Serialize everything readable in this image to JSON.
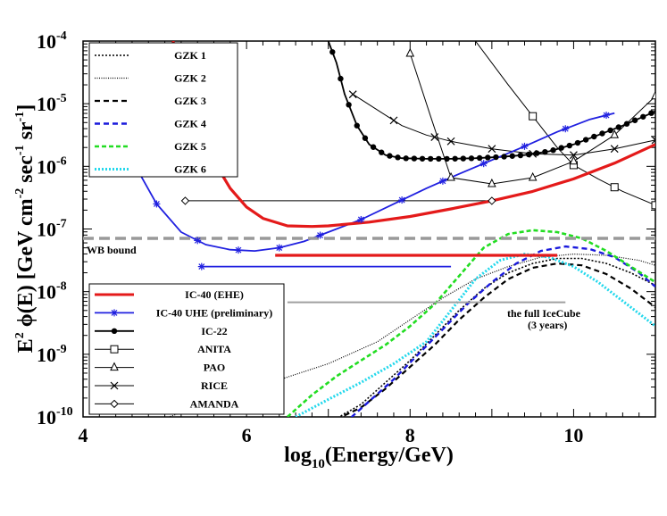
{
  "chart_data": {
    "type": "line",
    "title": "",
    "xlabel_base": "log",
    "xlabel_sub": "10",
    "xlabel_rest": "(Energy/GeV)",
    "ylabel_prefix": "E",
    "ylabel_exp2": "2",
    "ylabel_mid": " ϕ(E) [GeV cm",
    "ylabel_exp_cm": "-2",
    "ylabel_sec": " sec",
    "ylabel_exp_sec": "-1",
    "ylabel_sr": " sr",
    "ylabel_exp_sr": "-1",
    "ylabel_end": "]",
    "xlim": [
      4,
      11
    ],
    "ylim_log10": [
      -10,
      -4
    ],
    "x_ticks": [
      {
        "v": 4,
        "label": "4"
      },
      {
        "v": 6,
        "label": "6"
      },
      {
        "v": 8,
        "label": "8"
      },
      {
        "v": 10,
        "label": "10"
      }
    ],
    "y_ticks": [
      {
        "v": -4,
        "base": "10",
        "exp": "-4"
      },
      {
        "v": -5,
        "base": "10",
        "exp": "-5"
      },
      {
        "v": -6,
        "base": "10",
        "exp": "-6"
      },
      {
        "v": -7,
        "base": "10",
        "exp": "-7"
      },
      {
        "v": -8,
        "base": "10",
        "exp": "-8"
      },
      {
        "v": -9,
        "base": "10",
        "exp": "-9"
      },
      {
        "v": -10,
        "base": "10",
        "exp": "-10"
      }
    ],
    "legend_top": [
      {
        "key": "gzk1",
        "label": "GZK 1"
      },
      {
        "key": "gzk2",
        "label": "GZK 2"
      },
      {
        "key": "gzk3",
        "label": "GZK 3"
      },
      {
        "key": "gzk4",
        "label": "GZK 4"
      },
      {
        "key": "gzk5",
        "label": "GZK 5"
      },
      {
        "key": "gzk6",
        "label": "GZK 6"
      }
    ],
    "legend_bottom": [
      {
        "key": "ic40ehe",
        "label": "IC-40 (EHE)"
      },
      {
        "key": "ic40uhe",
        "label": "IC-40 UHE (preliminary)"
      },
      {
        "key": "ic22",
        "label": "IC-22"
      },
      {
        "key": "anita",
        "label": "ANITA"
      },
      {
        "key": "pao",
        "label": "PAO"
      },
      {
        "key": "rice",
        "label": "RICE"
      },
      {
        "key": "amanda",
        "label": "AMANDA"
      }
    ],
    "styles": {
      "gzk1": {
        "color": "#000000",
        "width": 1.6,
        "dash": "2,2",
        "marker": "none"
      },
      "gzk2": {
        "color": "#000000",
        "width": 1.2,
        "dash": "1,1.5",
        "marker": "none"
      },
      "gzk3": {
        "color": "#000000",
        "width": 2.2,
        "dash": "6,4",
        "marker": "none"
      },
      "gzk4": {
        "color": "#1a1adc",
        "width": 2.4,
        "dash": "6,4",
        "marker": "none"
      },
      "gzk5": {
        "color": "#22dd22",
        "width": 2.6,
        "dash": "5,3",
        "marker": "none"
      },
      "gzk6": {
        "color": "#22d8ec",
        "width": 3.0,
        "dash": "2,2",
        "marker": "none"
      },
      "ic40ehe": {
        "color": "#e41a1a",
        "width": 3.2,
        "dash": "",
        "marker": "none"
      },
      "ic40uhe": {
        "color": "#2020e0",
        "width": 1.8,
        "dash": "",
        "marker": "star"
      },
      "ic22": {
        "color": "#000000",
        "width": 1.8,
        "dash": "",
        "marker": "dot"
      },
      "anita": {
        "color": "#000000",
        "width": 1.0,
        "dash": "",
        "marker": "square"
      },
      "pao": {
        "color": "#000000",
        "width": 1.0,
        "dash": "",
        "marker": "triangle"
      },
      "rice": {
        "color": "#000000",
        "width": 1.0,
        "dash": "",
        "marker": "cross"
      },
      "amanda": {
        "color": "#000000",
        "width": 1.0,
        "dash": "",
        "marker": "diamond"
      }
    },
    "series": [
      {
        "key": "gzk2",
        "name": "GZK 2",
        "x": [
          4.6,
          5.5,
          6.3,
          7.0,
          7.6,
          8.0,
          8.4,
          8.8,
          9.2,
          9.6,
          10.0,
          10.4,
          10.8,
          11.0
        ],
        "y": [
          -10.2,
          -9.8,
          -9.45,
          -9.15,
          -8.8,
          -8.45,
          -8.1,
          -7.8,
          -7.6,
          -7.45,
          -7.4,
          -7.42,
          -7.5,
          -7.58
        ]
      },
      {
        "key": "gzk1",
        "name": "GZK 1",
        "x": [
          7.0,
          7.4,
          7.7,
          8.0,
          8.3,
          8.6,
          8.9,
          9.2,
          9.5,
          9.8,
          10.1,
          10.4,
          10.7,
          11.0
        ],
        "y": [
          -10.1,
          -9.8,
          -9.45,
          -9.1,
          -8.7,
          -8.3,
          -7.95,
          -7.7,
          -7.55,
          -7.47,
          -7.47,
          -7.55,
          -7.7,
          -7.9
        ]
      },
      {
        "key": "gzk3",
        "name": "GZK 3",
        "x": [
          7.0,
          7.4,
          7.7,
          8.0,
          8.3,
          8.6,
          8.9,
          9.2,
          9.5,
          9.8,
          10.1,
          10.4,
          10.7,
          11.0
        ],
        "y": [
          -10.1,
          -9.85,
          -9.55,
          -9.2,
          -8.85,
          -8.45,
          -8.1,
          -7.8,
          -7.62,
          -7.55,
          -7.58,
          -7.72,
          -7.95,
          -8.25
        ]
      },
      {
        "key": "gzk4",
        "name": "GZK 4",
        "x": [
          7.2,
          7.5,
          7.8,
          8.1,
          8.4,
          8.7,
          9.0,
          9.3,
          9.6,
          9.9,
          10.2,
          10.5,
          10.8,
          11.0
        ],
        "y": [
          -10.1,
          -9.75,
          -9.4,
          -9.0,
          -8.6,
          -8.2,
          -7.85,
          -7.55,
          -7.35,
          -7.28,
          -7.32,
          -7.45,
          -7.7,
          -7.92
        ]
      },
      {
        "key": "gzk5",
        "name": "GZK 5",
        "x": [
          6.5,
          6.8,
          7.1,
          7.4,
          7.7,
          8.0,
          8.3,
          8.6,
          8.9,
          9.2,
          9.5,
          9.8,
          10.1,
          10.4,
          10.7,
          11.0
        ],
        "y": [
          -10.0,
          -9.65,
          -9.35,
          -9.1,
          -8.85,
          -8.55,
          -8.2,
          -7.75,
          -7.3,
          -7.08,
          -7.02,
          -7.05,
          -7.15,
          -7.35,
          -7.6,
          -7.85
        ]
      },
      {
        "key": "gzk6",
        "name": "GZK 6",
        "x": [
          6.6,
          7.0,
          7.4,
          7.8,
          8.2,
          8.5,
          8.8,
          9.1,
          9.4,
          9.7,
          10.0,
          10.3,
          10.6,
          11.0
        ],
        "y": [
          -10.0,
          -9.72,
          -9.45,
          -9.15,
          -8.8,
          -8.3,
          -7.8,
          -7.5,
          -7.4,
          -7.45,
          -7.6,
          -7.85,
          -8.15,
          -8.55
        ]
      },
      {
        "key": "ic40ehe",
        "name": "IC-40 (EHE)",
        "x": [
          5.1,
          5.5,
          5.8,
          6.0,
          6.2,
          6.5,
          6.8,
          7.0,
          7.5,
          8.0,
          8.5,
          9.0,
          9.5,
          10.0,
          10.5,
          11.0
        ],
        "y": [
          -4.0,
          -5.7,
          -6.35,
          -6.65,
          -6.83,
          -6.95,
          -6.96,
          -6.95,
          -6.89,
          -6.8,
          -6.68,
          -6.55,
          -6.4,
          -6.2,
          -5.95,
          -5.65
        ]
      },
      {
        "key": "ic40uhe",
        "name": "IC-40 UHE (preliminary)",
        "x": [
          4.6,
          4.9,
          5.2,
          5.5,
          5.8,
          6.1,
          6.4,
          6.7,
          7.0,
          7.4,
          7.8,
          8.2,
          8.6,
          9.0,
          9.4,
          9.8,
          10.2,
          10.5
        ],
        "y": [
          -5.9,
          -6.6,
          -7.05,
          -7.25,
          -7.33,
          -7.35,
          -7.3,
          -7.2,
          -7.05,
          -6.85,
          -6.6,
          -6.35,
          -6.12,
          -5.9,
          -5.68,
          -5.45,
          -5.25,
          -5.15
        ]
      },
      {
        "key": "ic22",
        "name": "IC-22",
        "x": [
          7.0,
          7.1,
          7.2,
          7.35,
          7.5,
          7.7,
          7.9,
          8.2,
          8.5,
          8.8,
          9.1,
          9.4,
          9.7,
          10.0,
          10.3,
          10.6,
          10.9,
          11.0
        ],
        "y": [
          -4.0,
          -4.35,
          -4.85,
          -5.35,
          -5.65,
          -5.82,
          -5.87,
          -5.88,
          -5.88,
          -5.87,
          -5.85,
          -5.82,
          -5.76,
          -5.65,
          -5.5,
          -5.35,
          -5.18,
          -5.12
        ]
      },
      {
        "key": "anita",
        "name": "ANITA",
        "x": [
          8.8,
          9.2,
          9.5,
          9.8,
          10.0,
          10.3,
          10.6,
          11.0
        ],
        "y": [
          -4.0,
          -4.7,
          -5.2,
          -5.7,
          -5.98,
          -6.2,
          -6.4,
          -6.62
        ]
      },
      {
        "key": "pao",
        "name": "PAO",
        "x": [
          8.0,
          8.25,
          8.5,
          9.0,
          9.5,
          10.0,
          10.5,
          11.0
        ],
        "y": [
          -4.2,
          -5.2,
          -6.18,
          -6.28,
          -6.18,
          -5.92,
          -5.5,
          -4.88
        ]
      },
      {
        "key": "rice",
        "name": "RICE",
        "x": [
          7.3,
          7.6,
          7.9,
          8.2,
          8.5,
          9.0,
          9.5,
          10.0,
          10.5,
          11.0
        ],
        "y": [
          -4.85,
          -5.1,
          -5.35,
          -5.5,
          -5.6,
          -5.72,
          -5.8,
          -5.82,
          -5.72,
          -5.58
        ]
      },
      {
        "key": "amanda",
        "name": "AMANDA",
        "x": [
          5.25,
          9.0
        ],
        "y": [
          -6.55,
          -6.55
        ]
      }
    ],
    "markers": {
      "ic40uhe": [
        4.9,
        5.4,
        5.9,
        6.4,
        6.9,
        7.4,
        7.9,
        8.4,
        8.9,
        9.4,
        9.9,
        10.4
      ],
      "ic22": [
        7.05,
        7.15,
        7.25,
        7.35,
        7.45,
        7.55,
        7.65,
        7.75,
        7.85,
        7.95,
        8.05,
        8.15,
        8.25,
        8.35,
        8.45,
        8.55,
        8.65,
        8.75,
        8.85,
        8.95,
        9.05,
        9.15,
        9.25,
        9.35,
        9.45,
        9.55,
        9.65,
        9.75,
        9.85,
        9.95,
        10.05,
        10.15,
        10.25,
        10.35,
        10.45,
        10.55,
        10.65,
        10.75,
        10.85,
        10.95
      ],
      "anita": [
        9.5,
        10.0,
        10.5,
        11.0
      ],
      "pao": [
        8.0,
        8.5,
        9.0,
        9.5,
        10.0,
        10.5,
        11.0
      ],
      "rice": [
        7.3,
        7.8,
        8.3,
        8.5,
        9.0,
        9.5,
        10.0,
        10.5,
        11.0
      ],
      "amanda": [
        5.25,
        9.0
      ]
    },
    "horizontal_lines": [
      {
        "key": "wb",
        "label": "WB bound",
        "x": [
          4.0,
          11.0
        ],
        "y": -7.15,
        "color": "#999999",
        "width": 3.5,
        "dash": "12,6"
      },
      {
        "key": "ic40ehe_band",
        "label": "",
        "x": [
          6.35,
          9.8
        ],
        "y": -7.42,
        "color": "#e41a1a",
        "width": 3.2,
        "dash": ""
      },
      {
        "key": "ic40uhe_band",
        "label": "",
        "x": [
          5.45,
          8.5
        ],
        "y": -7.6,
        "color": "#2020e0",
        "width": 1.8,
        "dash": ""
      },
      {
        "key": "icecube_full",
        "label": "the full IceCube",
        "label2": "(3 years)",
        "x": [
          6.5,
          9.9
        ],
        "y": -8.17,
        "color": "#a0a0a0",
        "width": 2.0,
        "dash": ""
      }
    ]
  }
}
